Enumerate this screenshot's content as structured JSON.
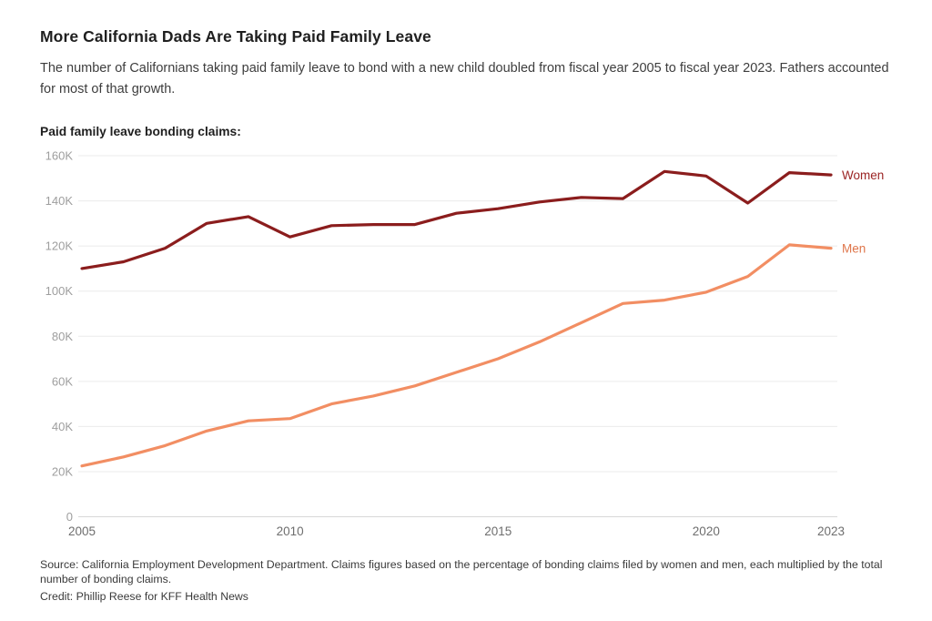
{
  "page": {
    "title": "More California Dads Are Taking Paid Family Leave",
    "subtitle": "The number of Californians taking paid family leave to bond with a new child doubled from fiscal year 2005 to fiscal year 2023. Fathers accounted for most of that growth.",
    "chart_heading": "Paid family leave bonding claims:",
    "source": "Source: California Employment Development Department. Claims figures based on the percentage of bonding claims filed by women and men, each multiplied by the total number of bonding claims.",
    "credit": "Credit: Phillip Reese for KFF Health News"
  },
  "colors": {
    "background": "#ffffff",
    "gridline": "#ebebeb",
    "zero_line": "#d8d8d8",
    "y_tick_label": "#9e9e9e",
    "x_tick_label": "#6e6e6e"
  },
  "chart_data": {
    "type": "line",
    "x": [
      2005,
      2006,
      2007,
      2008,
      2009,
      2010,
      2011,
      2012,
      2013,
      2014,
      2015,
      2016,
      2017,
      2018,
      2019,
      2020,
      2021,
      2022,
      2023
    ],
    "series": [
      {
        "name": "Women",
        "color": "#8B1D1D",
        "label_color": "#9B2424",
        "values": [
          110000,
          113000,
          119000,
          130000,
          133000,
          124000,
          129000,
          129500,
          129500,
          134500,
          136500,
          139500,
          141500,
          141000,
          153000,
          151000,
          139000,
          152500,
          151500
        ]
      },
      {
        "name": "Men",
        "color": "#F28E63",
        "label_color": "#DF764B",
        "values": [
          22500,
          26500,
          31500,
          38000,
          42500,
          43500,
          50000,
          53500,
          58000,
          64000,
          70000,
          77500,
          86000,
          94500,
          96000,
          99500,
          106500,
          120500,
          119000
        ]
      }
    ],
    "title": "Paid family leave bonding claims:",
    "xlabel": "",
    "ylabel": "",
    "ylim": [
      0,
      160000
    ],
    "ytick_step": 20000,
    "ytick_format": "thousands-K",
    "xticks": [
      2005,
      2010,
      2015,
      2020,
      2023
    ],
    "grid": true,
    "legend_position": "right-of-line-end"
  }
}
